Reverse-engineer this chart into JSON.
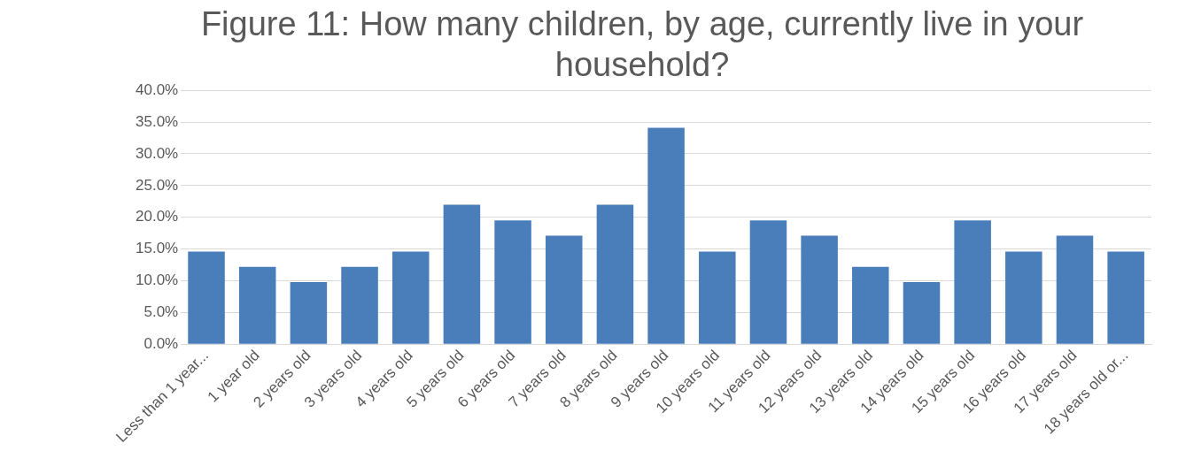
{
  "chart_data": {
    "type": "bar",
    "title": "Figure 11: How many children, by age, currently live in your household?",
    "categories": [
      "Less than 1 year...",
      "1 year old",
      "2 years old",
      "3 years old",
      "4 years old",
      "5 years old",
      "6 years old",
      "7 years old",
      "8 years old",
      "9 years old",
      "10 years old",
      "11 years old",
      "12 years old",
      "13 years old",
      "14 years old",
      "15 years old",
      "16 years old",
      "17 years old",
      "18 years old or..."
    ],
    "values": [
      14.6,
      12.2,
      9.8,
      12.2,
      14.6,
      22.0,
      19.5,
      17.1,
      22.0,
      34.1,
      14.6,
      19.5,
      17.1,
      12.2,
      9.8,
      19.5,
      14.6,
      17.1,
      14.6
    ],
    "color": "#4a7ebb",
    "ylim": [
      0,
      40
    ],
    "yticks": [
      {
        "value": 0,
        "label": "0.0%"
      },
      {
        "value": 5,
        "label": "5.0%"
      },
      {
        "value": 10,
        "label": "10.0%"
      },
      {
        "value": 15,
        "label": "15.0%"
      },
      {
        "value": 20,
        "label": "20.0%"
      },
      {
        "value": 25,
        "label": "25.0%"
      },
      {
        "value": 30,
        "label": "30.0%"
      },
      {
        "value": 35,
        "label": "35.0%"
      },
      {
        "value": 40,
        "label": "40.0%"
      }
    ],
    "grid": "y",
    "legend": false
  }
}
